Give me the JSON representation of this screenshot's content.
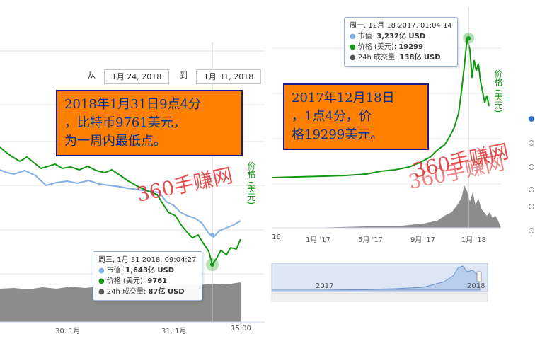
{
  "left_chart": {
    "range_from_label": "从",
    "range_to_label": "到",
    "range_from": "1月 24, 2018",
    "range_to": "1月 31, 2018",
    "series_label": "价格 (美元)",
    "x_ticks": [
      "30. 1月",
      "31. 1月",
      "15:00"
    ],
    "tooltip": {
      "title": "周三, 1月 31 2018, 09:04:27",
      "market_cap_label": "市值:",
      "market_cap_value": "1,643亿 USD",
      "price_label": "价格 (美元):",
      "price_value": "9761",
      "volume_label": "24h 成交量:",
      "volume_value": "87亿 USD"
    },
    "callout_lines": [
      "2018年1月31日9点4分",
      "，比特币9761美元，",
      "为一周内最低点。"
    ]
  },
  "right_chart": {
    "series_label": "价格 (美元)",
    "x_ticks": [
      "16",
      "1月 '17",
      "5月 '17",
      "9月 '17",
      "1月 '18"
    ],
    "navigator_ticks": [
      "2017",
      "2018"
    ],
    "tooltip": {
      "title": "周一, 12月 18 2017, 01:04:14",
      "market_cap_label": "市值:",
      "market_cap_value": "3,232亿 USD",
      "price_label": "价格 (美元):",
      "price_value": "19299",
      "volume_label": "24h 成交量:",
      "volume_value": "138亿 USD"
    },
    "callout_lines": [
      "2017年12月18日",
      "，1点4分，价",
      "格19299美元。"
    ]
  },
  "watermarks": [
    "360手赚网",
    "360手赚网",
    "360手赚网"
  ],
  "colors": {
    "price": "#119911",
    "market_cap": "#7fb0e6",
    "volume": "#555555",
    "callout_bg": "#ff7f00",
    "callout_text": "#003399",
    "watermark": "#e03030"
  }
}
